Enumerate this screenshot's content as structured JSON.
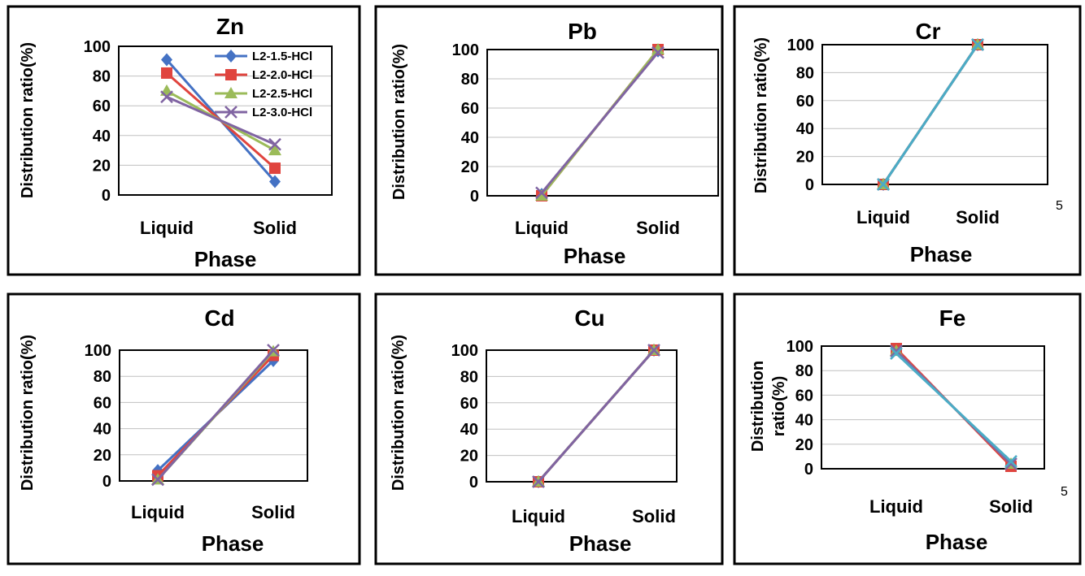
{
  "figure": {
    "series_colors": {
      "L2-1.5-HCl": "#4472c4",
      "L2-2.0-HCl": "#e0443e",
      "L2-2.5-HCl": "#9bbb59",
      "L2-3.0-HCl": "#8064a2",
      "top": "#4bacc6"
    },
    "stray_mark": "5"
  },
  "chart_data": [
    {
      "type": "line",
      "title": "Zn",
      "xlabel": "Phase",
      "ylabel": "Distribution ratio(%)",
      "categories": [
        "Liquid",
        "Solid"
      ],
      "ylim": [
        0,
        100
      ],
      "yticks": [
        "0",
        "20",
        "40",
        "60",
        "80",
        "100"
      ],
      "grid": true,
      "legend": {
        "position": "top-right",
        "entries": [
          "L2-1.5-HCl",
          "L2-2.0-HCl",
          "L2-2.5-HCl",
          "L2-3.0-HCl"
        ]
      },
      "series": [
        {
          "name": "L2-1.5-HCl",
          "marker": "diamond",
          "values": [
            91,
            9
          ]
        },
        {
          "name": "L2-2.0-HCl",
          "marker": "square",
          "values": [
            82,
            18
          ]
        },
        {
          "name": "L2-2.5-HCl",
          "marker": "triangle",
          "values": [
            70,
            30
          ]
        },
        {
          "name": "L2-3.0-HCl",
          "marker": "x",
          "values": [
            66,
            34
          ]
        }
      ]
    },
    {
      "type": "line",
      "title": "Pb",
      "xlabel": "Phase",
      "ylabel": "Distribution ratio(%)",
      "categories": [
        "Liquid",
        "Solid"
      ],
      "ylim": [
        0,
        100
      ],
      "yticks": [
        "0",
        "20",
        "40",
        "60",
        "80",
        "100"
      ],
      "grid": true,
      "series": [
        {
          "name": "L2-1.5-HCl",
          "marker": "diamond",
          "values": [
            1,
            99
          ]
        },
        {
          "name": "L2-2.0-HCl",
          "marker": "square",
          "values": [
            0,
            100
          ]
        },
        {
          "name": "L2-2.5-HCl",
          "marker": "triangle",
          "values": [
            0,
            100
          ]
        },
        {
          "name": "L2-3.0-HCl",
          "marker": "x",
          "values": [
            2,
            98
          ]
        }
      ]
    },
    {
      "type": "line",
      "title": "Cr",
      "xlabel": "Phase",
      "ylabel": "Distribution ratio(%)",
      "categories": [
        "Liquid",
        "Solid"
      ],
      "ylim": [
        0,
        100
      ],
      "yticks": [
        "0",
        "20",
        "40",
        "60",
        "80",
        "100"
      ],
      "grid": true,
      "series": [
        {
          "name": "L2-1.5-HCl",
          "marker": "diamond",
          "values": [
            0,
            100
          ]
        },
        {
          "name": "L2-2.0-HCl",
          "marker": "square",
          "values": [
            0,
            100
          ]
        },
        {
          "name": "L2-2.5-HCl",
          "marker": "triangle",
          "values": [
            0,
            100
          ]
        },
        {
          "name": "L2-3.0-HCl",
          "marker": "x",
          "values": [
            0,
            100
          ]
        },
        {
          "name": "",
          "marker": "x",
          "colorKey": "top",
          "values": [
            0,
            100
          ]
        }
      ]
    },
    {
      "type": "line",
      "title": "Cd",
      "xlabel": "Phase",
      "ylabel": "Distribution ratio(%)",
      "categories": [
        "Liquid",
        "Solid"
      ],
      "ylim": [
        0,
        100
      ],
      "yticks": [
        "0",
        "20",
        "40",
        "60",
        "80",
        "100"
      ],
      "grid": true,
      "series": [
        {
          "name": "L2-1.5-HCl",
          "marker": "diamond",
          "values": [
            8,
            92
          ]
        },
        {
          "name": "L2-2.0-HCl",
          "marker": "square",
          "values": [
            4,
            96
          ]
        },
        {
          "name": "L2-2.5-HCl",
          "marker": "triangle",
          "values": [
            1,
            99
          ]
        },
        {
          "name": "L2-3.0-HCl",
          "marker": "x",
          "values": [
            1,
            100
          ]
        }
      ]
    },
    {
      "type": "line",
      "title": "Cu",
      "xlabel": "Phase",
      "ylabel": "Distribution ratio(%)",
      "categories": [
        "Liquid",
        "Solid"
      ],
      "ylim": [
        0,
        100
      ],
      "yticks": [
        "0",
        "20",
        "40",
        "60",
        "80",
        "100"
      ],
      "grid": true,
      "series": [
        {
          "name": "L2-1.5-HCl",
          "marker": "diamond",
          "values": [
            0,
            100
          ]
        },
        {
          "name": "L2-2.0-HCl",
          "marker": "square",
          "values": [
            0,
            100
          ]
        },
        {
          "name": "L2-2.5-HCl",
          "marker": "triangle",
          "values": [
            0,
            100
          ]
        },
        {
          "name": "L2-3.0-HCl",
          "marker": "x",
          "values": [
            0,
            100
          ]
        }
      ]
    },
    {
      "type": "line",
      "title": "Fe",
      "xlabel": "Phase",
      "ylabel": "Distribution ratio(%)",
      "ylabel_lines": [
        "Distribution",
        "ratio(%)"
      ],
      "categories": [
        "Liquid",
        "Solid"
      ],
      "ylim": [
        0,
        100
      ],
      "yticks": [
        "0",
        "20",
        "40",
        "60",
        "80",
        "100"
      ],
      "grid": true,
      "series": [
        {
          "name": "L2-1.5-HCl",
          "marker": "diamond",
          "values": [
            97,
            3
          ]
        },
        {
          "name": "L2-2.0-HCl",
          "marker": "square",
          "values": [
            98,
            2
          ]
        },
        {
          "name": "L2-2.5-HCl",
          "marker": "triangle",
          "values": [
            96,
            4
          ]
        },
        {
          "name": "L2-3.0-HCl",
          "marker": "x",
          "values": [
            96,
            4
          ]
        },
        {
          "name": "",
          "marker": "x",
          "colorKey": "top",
          "values": [
            94,
            6
          ]
        }
      ]
    }
  ]
}
